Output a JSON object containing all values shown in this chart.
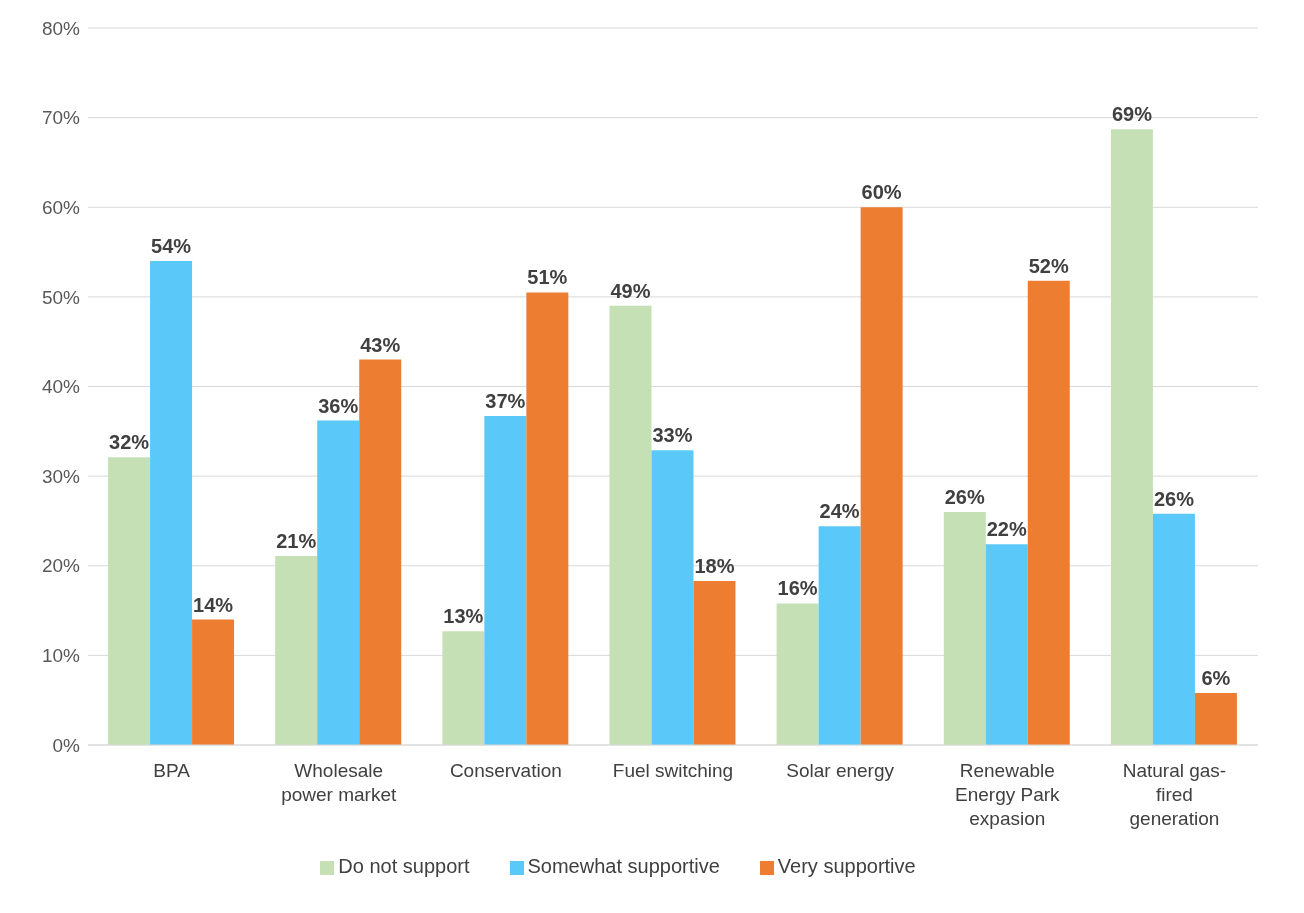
{
  "chart_data": {
    "type": "bar",
    "categories": [
      "BPA",
      "Wholesale power market",
      "Conservation",
      "Fuel switching",
      "Solar energy",
      "Renewable Energy Park expasion",
      "Natural gas-fired generation"
    ],
    "series": [
      {
        "name": "Do not support",
        "color": "#c5e0b4",
        "values": [
          32.1,
          21.1,
          12.7,
          49,
          15.8,
          26,
          68.7
        ],
        "value_labels": [
          "32%",
          "21%",
          "13%",
          "49%",
          "16%",
          "26%",
          "69%"
        ]
      },
      {
        "name": "Somewhat supportive",
        "color": "#5bc8fa",
        "values": [
          54,
          36.2,
          36.7,
          32.9,
          24.4,
          22.4,
          25.8
        ],
        "value_labels": [
          "54%",
          "36%",
          "37%",
          "33%",
          "24%",
          "22%",
          "26%"
        ]
      },
      {
        "name": "Very supportive",
        "color": "#ed7d31",
        "values": [
          14,
          43,
          50.5,
          18.3,
          60,
          51.8,
          5.8
        ],
        "value_labels": [
          "14%",
          "43%",
          "51%",
          "18%",
          "60%",
          "52%",
          "6%"
        ]
      }
    ],
    "ylim": [
      0,
      80
    ],
    "yticks": [
      {
        "value": 0,
        "label": "0%"
      },
      {
        "value": 10,
        "label": "10%"
      },
      {
        "value": 20,
        "label": "20%"
      },
      {
        "value": 30,
        "label": "30%"
      },
      {
        "value": 40,
        "label": "40%"
      },
      {
        "value": 50,
        "label": "50%"
      },
      {
        "value": 60,
        "label": "60%"
      },
      {
        "value": 70,
        "label": "70%"
      },
      {
        "value": 80,
        "label": "80%"
      }
    ],
    "grid": "y",
    "legend": "bottom"
  }
}
